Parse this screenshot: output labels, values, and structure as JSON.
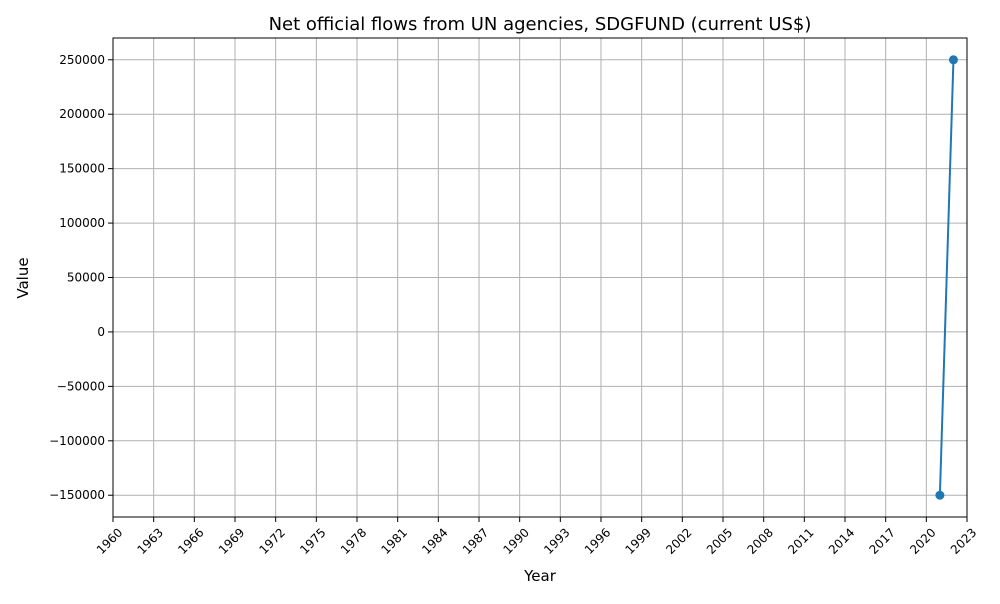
{
  "chart_data": {
    "type": "line",
    "title": "Net official flows from UN agencies, SDGFUND (current US$)",
    "xlabel": "Year",
    "ylabel": "Value",
    "x": [
      2021,
      2022
    ],
    "series": [
      {
        "values": [
          -150000,
          250000
        ],
        "color": "#1f77b4",
        "marker": "circle"
      }
    ],
    "xlim": [
      1960,
      2023
    ],
    "ylim": [
      -170000,
      270000
    ],
    "x_ticks": [
      1960,
      1963,
      1966,
      1969,
      1972,
      1975,
      1978,
      1981,
      1984,
      1987,
      1990,
      1993,
      1996,
      1999,
      2002,
      2005,
      2008,
      2011,
      2014,
      2017,
      2020,
      2023
    ],
    "y_ticks": [
      -150000,
      -100000,
      -50000,
      0,
      50000,
      100000,
      150000,
      200000,
      250000
    ],
    "grid": true,
    "x_tick_rotation": 45
  }
}
